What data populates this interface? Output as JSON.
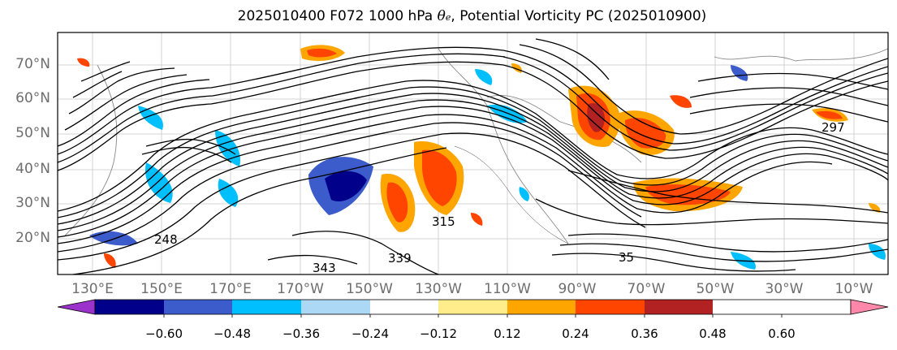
{
  "title": {
    "prefix": "2025010400 F072 1000 hPa ",
    "theta_symbol": "θ",
    "theta_sub": "e",
    "suffix": ", Potential Vorticity PC (2025010900)"
  },
  "map": {
    "lat_labels": [
      "70°N",
      "60°N",
      "50°N",
      "40°N",
      "30°N",
      "20°N"
    ],
    "lon_labels": [
      "130°E",
      "150°E",
      "170°E",
      "170°W",
      "150°W",
      "130°W",
      "110°W",
      "90°W",
      "70°W",
      "50°W",
      "30°W",
      "10°W"
    ],
    "contour_labels": [
      "339",
      "343",
      "315",
      "35",
      "297",
      "248"
    ]
  },
  "colorbar": {
    "colors": [
      "#9b32cc",
      "#00008b",
      "#3c5ccc",
      "#00bfff",
      "#add8f5",
      "#ffffff",
      "#ffec8b",
      "#ffa500",
      "#ff4500",
      "#b22222",
      "#ff88aa"
    ],
    "ticks": [
      "−0.60",
      "−0.48",
      "−0.36",
      "−0.24",
      "−0.12",
      "0.12",
      "0.24",
      "0.36",
      "0.48",
      "0.60"
    ]
  }
}
